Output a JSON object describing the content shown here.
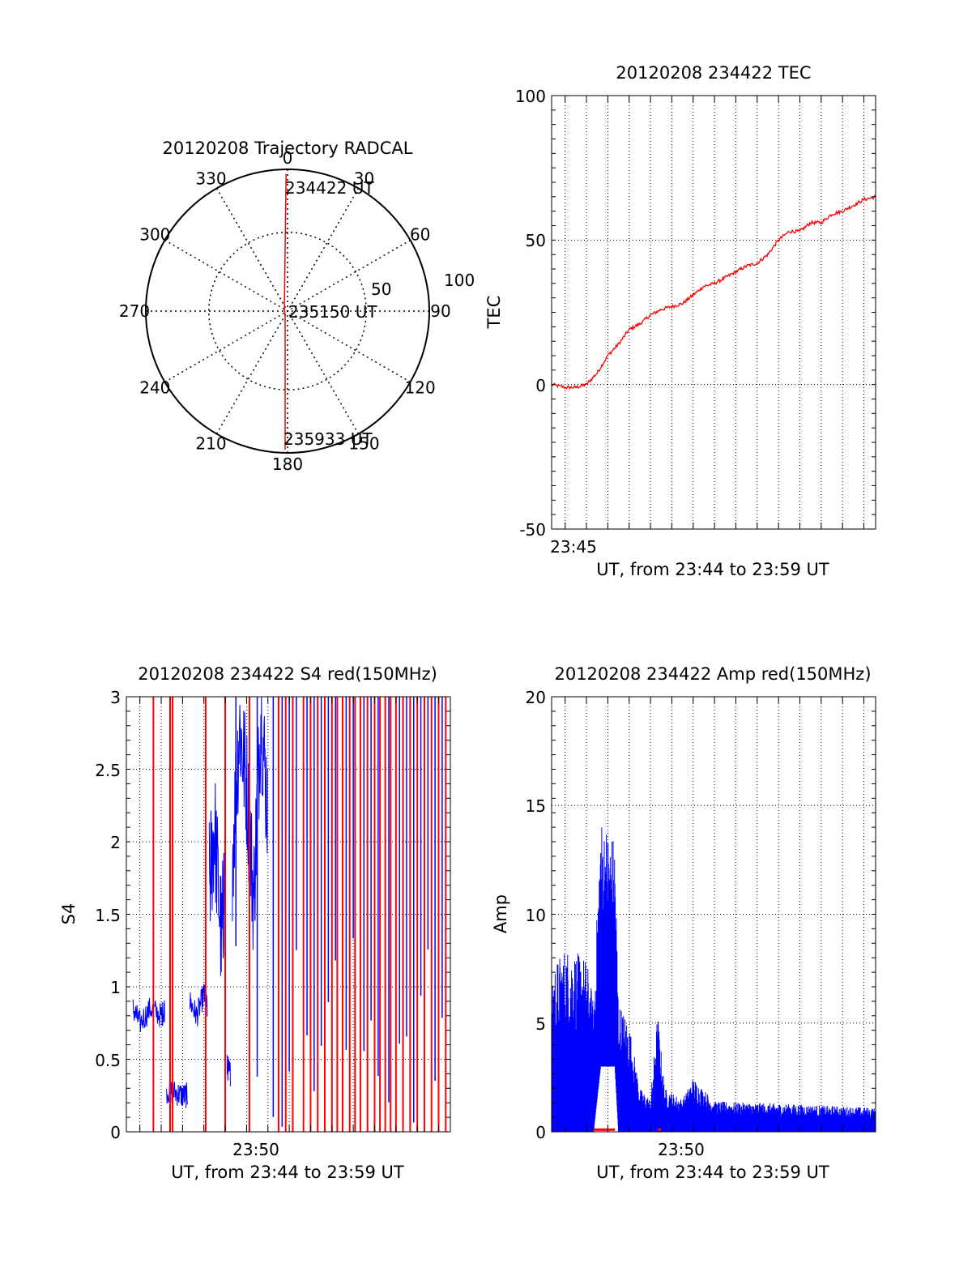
{
  "colors": {
    "red": "#ff0000",
    "blue": "#0000ff",
    "axis": "#000000"
  },
  "chart_data": [
    {
      "id": "polar",
      "type": "polar",
      "title": "20120208 Trajectory RADCAL",
      "azimuth_labels": [
        "0",
        "30",
        "60",
        "90",
        "120",
        "150",
        "180",
        "210",
        "240",
        "270",
        "300",
        "330"
      ],
      "radius_labels": [
        "50",
        "100"
      ],
      "annotations": {
        "start": "234422 UT",
        "mid": "235150 UT",
        "end": "235933 UT"
      },
      "trajectory": [
        {
          "az": 0,
          "zen": 87
        },
        {
          "az": 0,
          "zen": 60
        },
        {
          "az": 0,
          "zen": 30
        },
        {
          "az": 0,
          "zen": 3
        },
        {
          "az": 180,
          "zen": 3
        },
        {
          "az": 180,
          "zen": 30
        },
        {
          "az": 180,
          "zen": 60
        },
        {
          "az": 180,
          "zen": 88
        }
      ]
    },
    {
      "id": "tec",
      "type": "line",
      "title": "20120208 234422 TEC",
      "ylabel": "TEC",
      "xlabel": "UT, from 23:44 to 23:59 UT",
      "xlim": [
        "23:44:22",
        "23:59:33"
      ],
      "ylim": [
        -50,
        100
      ],
      "yticks": [
        "-50",
        "0",
        "50",
        "100"
      ],
      "xtick_label": "23:45",
      "series": [
        {
          "color": "red",
          "x": [
            "23:44:22",
            "23:45:00",
            "23:45:30",
            "23:46:00",
            "23:46:30",
            "23:47:00",
            "23:47:30",
            "23:48:00",
            "23:48:30",
            "23:49:00",
            "23:49:30",
            "23:50:00",
            "23:50:30",
            "23:51:00",
            "23:51:30",
            "23:52:00",
            "23:52:30",
            "23:53:00",
            "23:53:30",
            "23:54:00",
            "23:54:30",
            "23:55:00",
            "23:55:30",
            "23:56:00",
            "23:56:30",
            "23:57:00",
            "23:57:30",
            "23:58:00",
            "23:58:30",
            "23:59:00",
            "23:59:33"
          ],
          "y": [
            0,
            -1,
            -1,
            0,
            4,
            10,
            14,
            19,
            21,
            24,
            26,
            27,
            28,
            31,
            34,
            35,
            37,
            39,
            41,
            42,
            45,
            50,
            53,
            53,
            56,
            56,
            59,
            60,
            62,
            64,
            65
          ]
        }
      ]
    },
    {
      "id": "s4",
      "type": "line",
      "title": "20120208 234422 S4 red(150MHz)",
      "ylabel": "S4",
      "xlabel": "UT, from 23:44 to 23:59 UT",
      "xlim": [
        "23:44:22",
        "23:59:33"
      ],
      "ylim": [
        0,
        3
      ],
      "yticks": [
        "0",
        "0.5",
        "1",
        "1.5",
        "2",
        "2.5",
        "3"
      ],
      "xtick_label": "23:50",
      "blue_segments": [
        {
          "x": [
            "23:44:40",
            "23:45:00",
            "23:45:30",
            "23:46:00",
            "23:46:10"
          ],
          "y": [
            0.85,
            0.75,
            0.85,
            0.8,
            0.85
          ]
        },
        {
          "x": [
            "23:46:15",
            "23:46:40",
            "23:47:00",
            "23:47:15"
          ],
          "y": [
            0.28,
            0.27,
            0.25,
            0.25
          ]
        },
        {
          "x": [
            "23:47:20",
            "23:47:40",
            "23:48:00",
            "23:48:10"
          ],
          "y": [
            0.9,
            0.8,
            0.95,
            0.85
          ]
        },
        {
          "x": [
            "23:48:15",
            "23:48:30",
            "23:48:50",
            "23:49:00"
          ],
          "y": [
            1.7,
            2.1,
            1.3,
            1.9
          ]
        },
        {
          "x": [
            "23:49:05",
            "23:49:15"
          ],
          "y": [
            0.45,
            0.4
          ]
        },
        {
          "x": [
            "23:49:20",
            "23:49:40",
            "23:50:00",
            "23:50:20",
            "23:50:40",
            "23:51:00"
          ],
          "y": [
            1.9,
            2.8,
            2.4,
            1.6,
            2.9,
            2.2
          ]
        }
      ],
      "red_spikes": [
        "23:45:38",
        "23:46:25",
        "23:46:32",
        "23:48:05",
        "23:49:00",
        "23:50:08",
        "23:51:30",
        "23:51:50",
        "23:52:10",
        "23:52:40",
        "23:53:00",
        "23:53:20",
        "23:53:40",
        "23:54:00",
        "23:54:15",
        "23:54:30",
        "23:54:50",
        "23:55:05",
        "23:55:20",
        "23:55:40",
        "23:56:00",
        "23:56:15",
        "23:56:30",
        "23:56:45",
        "23:57:00",
        "23:57:20",
        "23:57:40",
        "23:58:00",
        "23:58:20",
        "23:58:40",
        "23:59:00",
        "23:59:20"
      ],
      "blue_spikes": [
        "23:49:30",
        "23:50:30",
        "23:51:15",
        "23:51:40",
        "23:52:00",
        "23:52:20",
        "23:52:50",
        "23:53:10",
        "23:53:30",
        "23:53:50",
        "23:54:10",
        "23:54:40",
        "23:55:00",
        "23:55:30",
        "23:55:50",
        "23:56:10",
        "23:56:40",
        "23:57:10",
        "23:57:30",
        "23:57:50",
        "23:58:10",
        "23:58:30",
        "23:58:50",
        "23:59:10"
      ]
    },
    {
      "id": "amp",
      "type": "line",
      "title": "20120208 234422 Amp red(150MHz)",
      "ylabel": "Amp",
      "xlabel": "UT, from 23:44 to 23:59 UT",
      "xlim": [
        "23:44:22",
        "23:59:33"
      ],
      "ylim": [
        0,
        20
      ],
      "yticks": [
        "0",
        "5",
        "10",
        "15",
        "20"
      ],
      "xtick_label": "23:50",
      "blue_envelope": [
        {
          "x": "23:44:22",
          "lo": 0,
          "hi": 7.5
        },
        {
          "x": "23:45:00",
          "lo": 0,
          "hi": 8.5
        },
        {
          "x": "23:46:00",
          "lo": 0,
          "hi": 8.0
        },
        {
          "x": "23:46:20",
          "lo": 0,
          "hi": 6.0
        },
        {
          "x": "23:46:40",
          "lo": 3.0,
          "hi": 14.5
        },
        {
          "x": "23:47:20",
          "lo": 3.0,
          "hi": 13.5
        },
        {
          "x": "23:47:30",
          "lo": 0,
          "hi": 6.0
        },
        {
          "x": "23:48:00",
          "lo": 0,
          "hi": 5.0
        },
        {
          "x": "23:48:30",
          "lo": 0,
          "hi": 2.0
        },
        {
          "x": "23:49:00",
          "lo": 0,
          "hi": 1.5
        },
        {
          "x": "23:49:20",
          "lo": 0,
          "hi": 5.5
        },
        {
          "x": "23:49:40",
          "lo": 0,
          "hi": 2.0
        },
        {
          "x": "23:50:30",
          "lo": 0,
          "hi": 1.5
        },
        {
          "x": "23:51:00",
          "lo": 0,
          "hi": 2.5
        },
        {
          "x": "23:52:00",
          "lo": 0,
          "hi": 1.4
        },
        {
          "x": "23:55:00",
          "lo": 0,
          "hi": 1.3
        },
        {
          "x": "23:59:33",
          "lo": 0,
          "hi": 1.1
        }
      ],
      "red_segments": [
        {
          "x": [
            "23:46:20",
            "23:47:20"
          ],
          "y": [
            0.1,
            0.1
          ]
        },
        {
          "x": [
            "23:49:20",
            "23:49:30"
          ],
          "y": [
            0.1,
            0.1
          ]
        }
      ]
    }
  ]
}
